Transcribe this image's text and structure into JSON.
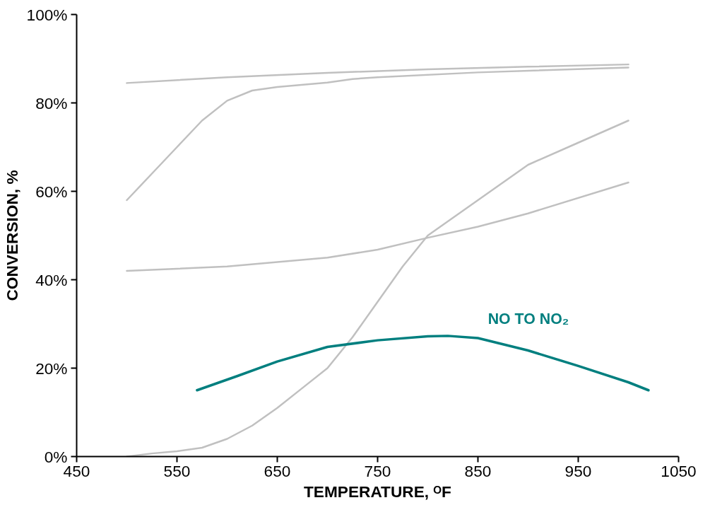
{
  "chart_data": {
    "type": "line",
    "xlabel": "TEMPERATURE, ᴼF",
    "ylabel": "CONVERSION, %",
    "xlim": [
      450,
      1050
    ],
    "xticks": [
      450,
      550,
      650,
      750,
      850,
      950,
      1050
    ],
    "ylim": [
      0,
      100
    ],
    "yticks": [
      {
        "value": 0,
        "label": "0%"
      },
      {
        "value": 20,
        "label": "20%"
      },
      {
        "value": 40,
        "label": "40%"
      },
      {
        "value": 60,
        "label": "60%"
      },
      {
        "value": 80,
        "label": "80%"
      },
      {
        "value": 100,
        "label": "100%"
      }
    ],
    "grid": false,
    "marker": "none",
    "line_style": "solid",
    "series": [
      {
        "color": "#c0c0c0",
        "x": [
          500,
          600,
          700,
          800,
          900,
          1000
        ],
        "values": [
          84.5,
          85.8,
          86.8,
          87.6,
          88.2,
          88.7
        ]
      },
      {
        "color": "#c0c0c0",
        "x": [
          500,
          525,
          550,
          575,
          600,
          625,
          650,
          700,
          725,
          750,
          850,
          1000
        ],
        "values": [
          58,
          64,
          70,
          76,
          80.5,
          82.8,
          83.6,
          84.6,
          85.4,
          85.8,
          86.9,
          88
        ]
      },
      {
        "color": "#c0c0c0",
        "x": [
          500,
          525,
          550,
          575,
          600,
          625,
          650,
          675,
          700,
          725,
          750,
          775,
          800,
          850,
          900,
          950,
          1000
        ],
        "values": [
          0,
          0.7,
          1.2,
          2,
          4,
          7,
          11,
          15.5,
          20,
          27,
          35,
          43,
          50,
          58,
          66,
          71,
          76
        ]
      },
      {
        "color": "#c0c0c0",
        "x": [
          500,
          600,
          700,
          750,
          800,
          850,
          900,
          1000
        ],
        "values": [
          42,
          43,
          45,
          46.8,
          49.5,
          52,
          55,
          62
        ]
      },
      {
        "name": "NO TO NO₂",
        "color": "#007f7f",
        "x": [
          570,
          610,
          650,
          700,
          750,
          800,
          820,
          850,
          900,
          950,
          1000,
          1020
        ],
        "values": [
          15,
          18.2,
          21.5,
          24.8,
          26.3,
          27.2,
          27.3,
          26.8,
          24,
          20.5,
          16.8,
          15
        ]
      }
    ]
  }
}
